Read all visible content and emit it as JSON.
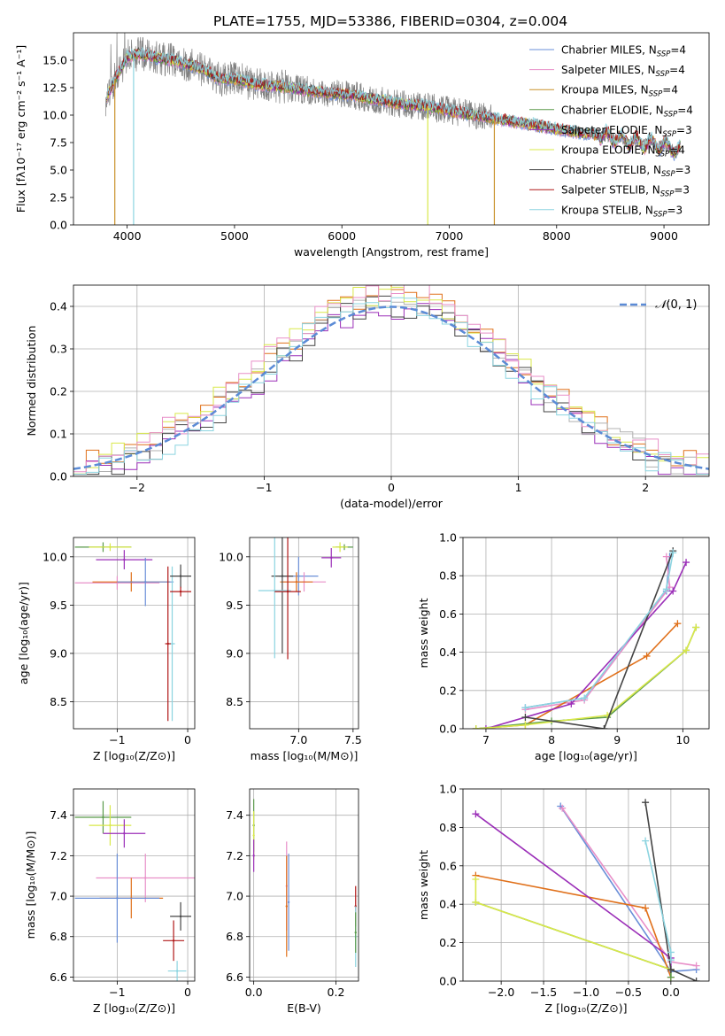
{
  "title": "PLATE=1755, MJD=53386, FIBERID=0304, z=0.004",
  "chart_data": [
    {
      "id": "spectrum",
      "type": "line",
      "xlabel": "wavelength [Angstrom, rest frame]",
      "ylabel": "Flux [fλ10⁻¹⁷ erg cm⁻² s⁻¹ A⁻¹]",
      "xlim": [
        3500,
        9420
      ],
      "ylim": [
        0,
        17.5
      ],
      "xticks": [
        4000,
        5000,
        6000,
        7000,
        8000,
        9000
      ],
      "yticks": [
        0.0,
        2.5,
        5.0,
        7.5,
        10.0,
        12.5,
        15.0
      ],
      "grid": false,
      "legend_position": "top-right",
      "data_color": "#808080",
      "models": [
        {
          "name": "Chabrier MILES, N$_{SSP}$=4",
          "legend": [
            "Chabrier MILES, N",
            "SSP",
            "=4"
          ],
          "color": "#6a8fd8"
        },
        {
          "name": "Salpeter MILES, N$_{SSP}$=4",
          "legend": [
            "Salpeter MILES, N",
            "SSP",
            "=4"
          ],
          "color": "#e88fc8"
        },
        {
          "name": "Kroupa MILES, N$_{SSP}$=4",
          "legend": [
            "Kroupa MILES, N",
            "SSP",
            "=4"
          ],
          "color": "#c9922a"
        },
        {
          "name": "Chabrier ELODIE, N$_{SSP}$=4",
          "legend": [
            "Chabrier ELODIE, N",
            "SSP",
            "=4"
          ],
          "color": "#5a9a4a"
        },
        {
          "name": "Salpeter ELODIE, N$_{SSP}$=3",
          "legend": [
            "Salpeter ELODIE, N",
            "SSP",
            "=3"
          ],
          "color": "#9b2fb8"
        },
        {
          "name": "Kroupa ELODIE, N$_{SSP}$=4",
          "legend": [
            "Kroupa ELODIE, N",
            "SSP",
            "=4"
          ],
          "color": "#d9e84a"
        },
        {
          "name": "Chabrier STELIB, N$_{SSP}$=3",
          "legend": [
            "Chabrier STELIB, N",
            "SSP",
            "=3"
          ],
          "color": "#444444"
        },
        {
          "name": "Salpeter STELIB, N$_{SSP}$=3",
          "legend": [
            "Salpeter STELIB, N",
            "SSP",
            "=3"
          ],
          "color": "#b01818"
        },
        {
          "name": "Kroupa STELIB, N$_{SSP}$=3",
          "legend": [
            "Kroupa STELIB, N",
            "SSP",
            "=3"
          ],
          "color": "#8cd4e0"
        }
      ],
      "continuum": [
        [
          3800,
          11.5
        ],
        [
          3900,
          13.5
        ],
        [
          4000,
          15.3
        ],
        [
          4100,
          15.6
        ],
        [
          4300,
          15.2
        ],
        [
          4500,
          14.8
        ],
        [
          4700,
          14.2
        ],
        [
          4862,
          13.3
        ],
        [
          5000,
          13.3
        ],
        [
          5200,
          12.8
        ],
        [
          5500,
          12.5
        ],
        [
          5800,
          12.1
        ],
        [
          6100,
          11.8
        ],
        [
          6400,
          11.3
        ],
        [
          6563,
          11.0
        ],
        [
          6800,
          10.8
        ],
        [
          7000,
          10.4
        ],
        [
          7300,
          9.9
        ],
        [
          7600,
          9.4
        ],
        [
          7800,
          9.1
        ],
        [
          8000,
          8.7
        ],
        [
          8300,
          8.3
        ],
        [
          8500,
          8.0
        ],
        [
          8700,
          7.6
        ],
        [
          9000,
          7.2
        ],
        [
          9150,
          6.8
        ]
      ],
      "drops": [
        [
          3885,
          "#c9922a"
        ],
        [
          4060,
          "#8cd4e0"
        ],
        [
          6800,
          "#d9e84a"
        ],
        [
          7420,
          "#c9922a"
        ]
      ]
    },
    {
      "id": "residuals",
      "type": "histogram",
      "xlabel": "(data-model)/error",
      "ylabel": "Normed distribution",
      "xlim": [
        -2.5,
        2.5
      ],
      "ylim": [
        0,
        0.45
      ],
      "xticks": [
        -2,
        -1,
        0,
        1,
        2
      ],
      "yticks": [
        0.0,
        0.1,
        0.2,
        0.3,
        0.4
      ],
      "grid": true,
      "legend": "$\\mathcal{N}(0,1)$",
      "legend_position": "top-right",
      "gaussian_color": "#5b8bd6",
      "series": [
        {
          "color": "#e0701a",
          "offset": 0.01
        },
        {
          "color": "#9b2fb8",
          "offset": -0.02
        },
        {
          "color": "#b0b0b0",
          "offset": 0.0
        },
        {
          "color": "#d9e84a",
          "offset": 0.015
        },
        {
          "color": "#444444",
          "offset": -0.015
        },
        {
          "color": "#e88fc8",
          "offset": 0.02
        },
        {
          "color": "#8cd4e0",
          "offset": -0.01
        }
      ]
    },
    {
      "id": "age-vs-Z",
      "type": "scatter",
      "xlabel": "Z [log₁₀(Z/Z⊙)]",
      "ylabel": "age [log₁₀(age/yr)]",
      "xlim": [
        -1.62,
        0.1
      ],
      "ylim": [
        8.22,
        10.2
      ],
      "xticks": [
        -1,
        0
      ],
      "yticks": [
        8.5,
        9.0,
        9.5,
        10.0
      ],
      "grid": true,
      "points": [
        {
          "x": -1.2,
          "y": 10.1,
          "xerr": 0.4,
          "yerr": 0.05,
          "color": "#5a9a4a"
        },
        {
          "x": -1.1,
          "y": 10.1,
          "xerr": 0.3,
          "yerr": 0.04,
          "color": "#d9e84a"
        },
        {
          "x": -0.9,
          "y": 9.97,
          "xerr": 0.4,
          "yerr": 0.1,
          "color": "#9b2fb8"
        },
        {
          "x": -1.0,
          "y": 9.73,
          "xerr": 0.6,
          "yerr": 0.07,
          "color": "#e88fc8"
        },
        {
          "x": -0.8,
          "y": 9.74,
          "xerr": 0.55,
          "yerr": 0.1,
          "color": "#e0701a"
        },
        {
          "x": -0.6,
          "y": 9.74,
          "xerr": 0.4,
          "yerr": 0.25,
          "color": "#6a8fd8"
        },
        {
          "x": -0.22,
          "y": 9.1,
          "xerr": 0.04,
          "yerr": 0.8,
          "color": "#8cd4e0"
        },
        {
          "x": -0.28,
          "y": 9.1,
          "xerr": 0.04,
          "yerr": 0.8,
          "color": "#b01818"
        },
        {
          "x": -0.1,
          "y": 9.8,
          "xerr": 0.15,
          "yerr": 0.12,
          "color": "#444444"
        },
        {
          "x": -0.1,
          "y": 9.64,
          "xerr": 0.15,
          "yerr": 0.05,
          "color": "#b01818"
        }
      ]
    },
    {
      "id": "age-vs-mass",
      "type": "scatter",
      "xlabel": "mass [log₁₀(M/M⊙)]",
      "ylabel": "",
      "xlim": [
        6.55,
        7.55
      ],
      "ylim": [
        8.22,
        10.2
      ],
      "xticks": [
        7.0,
        7.5
      ],
      "yticks": [
        8.5,
        9.0,
        9.5,
        10.0
      ],
      "grid": true,
      "points": [
        {
          "x": 7.42,
          "y": 10.1,
          "xerr": 0.08,
          "yerr": 0.03,
          "color": "#5a9a4a"
        },
        {
          "x": 7.38,
          "y": 10.1,
          "xerr": 0.07,
          "yerr": 0.05,
          "color": "#d9e84a"
        },
        {
          "x": 7.3,
          "y": 9.99,
          "xerr": 0.09,
          "yerr": 0.1,
          "color": "#9b2fb8"
        },
        {
          "x": 7.0,
          "y": 9.8,
          "xerr": 0.18,
          "yerr": 0.2,
          "color": "#6a8fd8"
        },
        {
          "x": 7.05,
          "y": 9.74,
          "xerr": 0.2,
          "yerr": 0.1,
          "color": "#e88fc8"
        },
        {
          "x": 6.98,
          "y": 9.74,
          "xerr": 0.15,
          "yerr": 0.1,
          "color": "#e0701a"
        },
        {
          "x": 6.85,
          "y": 9.8,
          "xerr": 0.1,
          "yerr": 0.8,
          "color": "#444444"
        },
        {
          "x": 6.78,
          "y": 9.65,
          "xerr": 0.15,
          "yerr": 0.7,
          "color": "#8cd4e0"
        },
        {
          "x": 6.9,
          "y": 9.64,
          "xerr": 0.12,
          "yerr": 0.7,
          "color": "#b01818"
        }
      ]
    },
    {
      "id": "mass-weight-vs-age",
      "type": "line",
      "xlabel": "age [log₁₀(age/yr)]",
      "ylabel": "mass weight",
      "xlim": [
        6.65,
        10.4
      ],
      "ylim": [
        0,
        1.0
      ],
      "xticks": [
        7,
        8,
        9,
        10
      ],
      "yticks": [
        0.0,
        0.2,
        0.4,
        0.6,
        0.8,
        1.0
      ],
      "grid": true,
      "series": [
        {
          "color": "#6a8fd8",
          "x": [
            7.6,
            8.5,
            9.75,
            9.8
          ],
          "y": [
            0.11,
            0.16,
            0.72,
            0.9
          ]
        },
        {
          "color": "#e88fc8",
          "x": [
            7.6,
            8.5,
            9.8,
            9.75
          ],
          "y": [
            0.1,
            0.15,
            0.74,
            0.9
          ]
        },
        {
          "color": "#e0701a",
          "x": [
            6.85,
            7.6,
            9.45,
            9.92
          ],
          "y": [
            0.0,
            0.02,
            0.38,
            0.55
          ]
        },
        {
          "color": "#5a9a4a",
          "x": [
            6.85,
            8.0,
            8.85,
            10.05,
            10.2
          ],
          "y": [
            0.0,
            0.04,
            0.06,
            0.41,
            0.53
          ]
        },
        {
          "color": "#9b2fb8",
          "x": [
            7.0,
            8.3,
            9.85,
            10.05
          ],
          "y": [
            0.0,
            0.13,
            0.72,
            0.87
          ]
        },
        {
          "color": "#d9e84a",
          "x": [
            6.85,
            7.6,
            8.85,
            10.05,
            10.2
          ],
          "y": [
            0.0,
            0.02,
            0.07,
            0.41,
            0.53
          ]
        },
        {
          "color": "#444444",
          "x": [
            7.6,
            8.8,
            9.85
          ],
          "y": [
            0.06,
            0.0,
            0.93
          ]
        },
        {
          "color": "#8cd4e0",
          "x": [
            7.6,
            8.5,
            9.75,
            9.85
          ],
          "y": [
            0.11,
            0.16,
            0.73,
            0.92
          ]
        }
      ]
    },
    {
      "id": "mass-vs-Z",
      "type": "scatter",
      "xlabel": "Z [log₁₀(Z/Z⊙)]",
      "ylabel": "mass [log₁₀(M/M⊙)]",
      "xlim": [
        -1.62,
        0.1
      ],
      "ylim": [
        6.58,
        7.53
      ],
      "xticks": [
        -1,
        0
      ],
      "yticks": [
        6.6,
        6.8,
        7.0,
        7.2,
        7.4
      ],
      "grid": true,
      "points": [
        {
          "x": -1.2,
          "y": 7.39,
          "xerr": 0.4,
          "yerr": 0.08,
          "color": "#5a9a4a"
        },
        {
          "x": -1.1,
          "y": 7.35,
          "xerr": 0.3,
          "yerr": 0.1,
          "color": "#d9e84a"
        },
        {
          "x": -0.9,
          "y": 7.31,
          "xerr": 0.3,
          "yerr": 0.07,
          "color": "#9b2fb8"
        },
        {
          "x": -0.6,
          "y": 7.09,
          "xerr": 0.7,
          "yerr": 0.12,
          "color": "#e88fc8"
        },
        {
          "x": -0.8,
          "y": 6.99,
          "xerr": 0.45,
          "yerr": 0.1,
          "color": "#e0701a"
        },
        {
          "x": -1.0,
          "y": 6.99,
          "xerr": 0.6,
          "yerr": 0.22,
          "color": "#6a8fd8"
        },
        {
          "x": -0.1,
          "y": 6.9,
          "xerr": 0.15,
          "yerr": 0.07,
          "color": "#444444"
        },
        {
          "x": -0.2,
          "y": 6.78,
          "xerr": 0.15,
          "yerr": 0.1,
          "color": "#b01818"
        },
        {
          "x": -0.15,
          "y": 6.63,
          "xerr": 0.13,
          "yerr": 0.05,
          "color": "#8cd4e0"
        }
      ]
    },
    {
      "id": "mass-vs-EBV",
      "type": "scatter",
      "xlabel": "E(B-V)",
      "ylabel": "",
      "xlim": [
        -0.01,
        0.255
      ],
      "ylim": [
        6.58,
        7.53
      ],
      "xticks": [
        0.0,
        0.2
      ],
      "yticks": [
        6.6,
        6.8,
        7.0,
        7.2,
        7.4
      ],
      "grid": true,
      "points": [
        {
          "x": 0.0,
          "y": 7.35,
          "xerr": 0.0,
          "yerr": 0.13,
          "color": "#5a9a4a"
        },
        {
          "x": 0.0,
          "y": 7.3,
          "xerr": 0.0,
          "yerr": 0.12,
          "color": "#d9e84a"
        },
        {
          "x": 0.0,
          "y": 7.2,
          "xerr": 0.0,
          "yerr": 0.08,
          "color": "#9b2fb8"
        },
        {
          "x": 0.08,
          "y": 7.05,
          "xerr": 0.0,
          "yerr": 0.22,
          "color": "#e88fc8"
        },
        {
          "x": 0.08,
          "y": 6.95,
          "xerr": 0.0,
          "yerr": 0.25,
          "color": "#e0701a"
        },
        {
          "x": 0.085,
          "y": 6.97,
          "xerr": 0.0,
          "yerr": 0.24,
          "color": "#6a8fd8"
        },
        {
          "x": 0.248,
          "y": 6.95,
          "xerr": 0.0,
          "yerr": 0.1,
          "color": "#b01818"
        },
        {
          "x": 0.248,
          "y": 6.8,
          "xerr": 0.0,
          "yerr": 0.15,
          "color": "#8cd4e0"
        },
        {
          "x": 0.248,
          "y": 6.82,
          "xerr": 0.0,
          "yerr": 0.1,
          "color": "#5a9a4a"
        }
      ]
    },
    {
      "id": "mass-weight-vs-Z",
      "type": "line",
      "xlabel": "Z [log₁₀(Z/Z⊙)]",
      "ylabel": "mass weight",
      "xlim": [
        -2.45,
        0.45
      ],
      "ylim": [
        0,
        1.0
      ],
      "xticks": [
        -2.0,
        -1.5,
        -1.0,
        -0.5,
        0.0
      ],
      "yticks": [
        0.0,
        0.2,
        0.4,
        0.6,
        0.8,
        1.0
      ],
      "grid": true,
      "series": [
        {
          "color": "#6a8fd8",
          "x": [
            -1.3,
            0.0,
            0.3
          ],
          "y": [
            0.91,
            0.05,
            0.06
          ]
        },
        {
          "color": "#e88fc8",
          "x": [
            -1.28,
            0.0,
            0.3
          ],
          "y": [
            0.9,
            0.1,
            0.08
          ]
        },
        {
          "color": "#e0701a",
          "x": [
            -2.3,
            -0.3,
            0.0
          ],
          "y": [
            0.55,
            0.38,
            0.02
          ]
        },
        {
          "color": "#5a9a4a",
          "x": [
            -2.3,
            0.0,
            0.0
          ],
          "y": [
            0.41,
            0.06,
            0.02
          ]
        },
        {
          "color": "#9b2fb8",
          "x": [
            -2.3,
            0.0,
            0.0
          ],
          "y": [
            0.87,
            0.12,
            0.06
          ]
        },
        {
          "color": "#d9e84a",
          "x": [
            -2.3,
            -2.3,
            0.0
          ],
          "y": [
            0.53,
            0.41,
            0.06
          ]
        },
        {
          "color": "#444444",
          "x": [
            -0.3,
            0.0,
            0.3
          ],
          "y": [
            0.93,
            0.06,
            0.0
          ]
        },
        {
          "color": "#8cd4e0",
          "x": [
            -0.3,
            0.0,
            0.0
          ],
          "y": [
            0.73,
            0.15,
            0.11
          ]
        }
      ]
    }
  ]
}
